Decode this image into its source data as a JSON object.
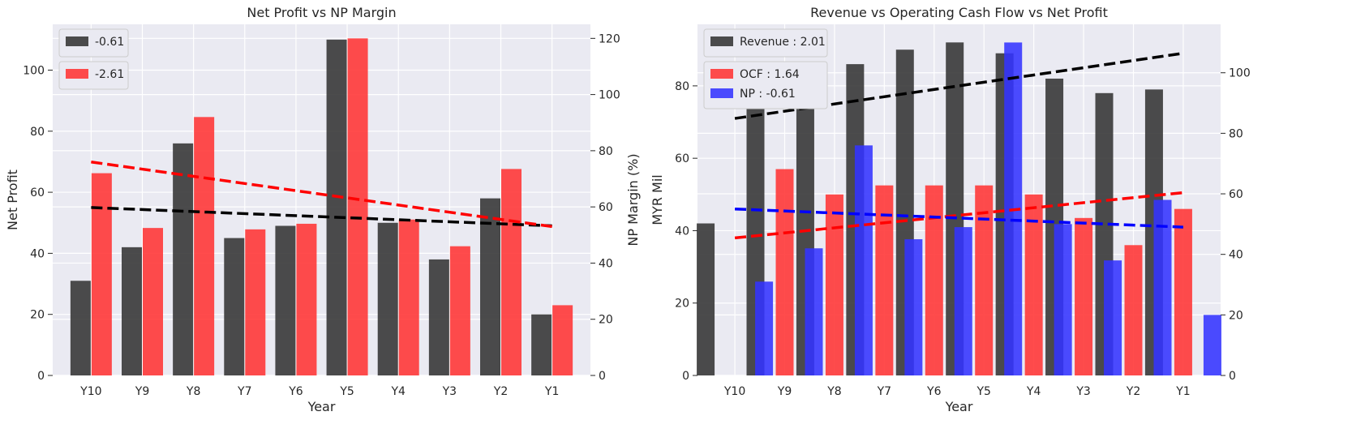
{
  "chart_data": [
    {
      "type": "bar",
      "title": "Net Profit vs NP Margin",
      "xlabel": "Year",
      "ylabel": "Net Profit",
      "y2label": "NP Margin (%)",
      "categories": [
        "Y10",
        "Y9",
        "Y8",
        "Y7",
        "Y6",
        "Y5",
        "Y4",
        "Y3",
        "Y2",
        "Y1"
      ],
      "ylim": [
        0,
        115
      ],
      "y2lim": [
        0,
        125
      ],
      "yticks": [
        0,
        20,
        40,
        60,
        80,
        100
      ],
      "y2ticks": [
        0,
        20,
        40,
        60,
        80,
        100,
        120
      ],
      "grid": true,
      "legend_position": "top-left",
      "series": [
        {
          "name": "-0.61",
          "axis": "left",
          "color": "#333333",
          "values": [
            31,
            42,
            76,
            45,
            49,
            110,
            50,
            38,
            58,
            20
          ]
        },
        {
          "name": "-2.61",
          "axis": "right",
          "color": "#ff3333",
          "values": [
            72,
            52.5,
            92,
            52,
            54,
            120,
            55.5,
            46,
            73.5,
            25
          ]
        }
      ],
      "trendlines": [
        {
          "series": "-0.61",
          "axis": "left",
          "color": "#000000",
          "start": 55,
          "end": 49
        },
        {
          "series": "-2.61",
          "axis": "right",
          "color": "#ff0000",
          "start": 76,
          "end": 53
        }
      ]
    },
    {
      "type": "bar",
      "title": "Revenue vs Operating Cash Flow vs Net Profit",
      "xlabel": "Year",
      "ylabel": "MYR Mil",
      "categories": [
        "Y10",
        "Y9",
        "Y8",
        "Y7",
        "Y6",
        "Y5",
        "Y4",
        "Y3",
        "Y2",
        "Y1"
      ],
      "ylim": [
        0,
        97
      ],
      "y2lim": [
        0,
        116
      ],
      "yticks": [
        0,
        20,
        40,
        60,
        80
      ],
      "y2ticks": [
        0,
        20,
        40,
        60,
        80,
        100
      ],
      "grid": true,
      "legend_position": "top-left",
      "series": [
        {
          "name": "Revenue : 2.01",
          "axis": "left",
          "color": "#333333",
          "values": [
            42,
            79,
            83,
            86,
            90,
            92,
            89,
            82,
            78,
            79
          ]
        },
        {
          "name": "OCF : 1.64",
          "axis": "left",
          "color": "#ff3333",
          "values": [
            0,
            57,
            50,
            52.5,
            52.5,
            52.5,
            50,
            43.5,
            36,
            46
          ]
        },
        {
          "name": "NP : -0.61",
          "axis": "right",
          "color": "#3333ff",
          "values": [
            31,
            42,
            76,
            45,
            49,
            110,
            50,
            38,
            58,
            20
          ]
        }
      ],
      "trendlines": [
        {
          "series": "Revenue : 2.01",
          "axis": "left",
          "color": "#000000",
          "start": 71,
          "end": 89
        },
        {
          "series": "OCF : 1.64",
          "axis": "left",
          "color": "#ff0000",
          "start": 38,
          "end": 50.5
        },
        {
          "series": "NP : -0.61",
          "axis": "right",
          "color": "#0000ff",
          "start": 55,
          "end": 49
        }
      ]
    }
  ]
}
